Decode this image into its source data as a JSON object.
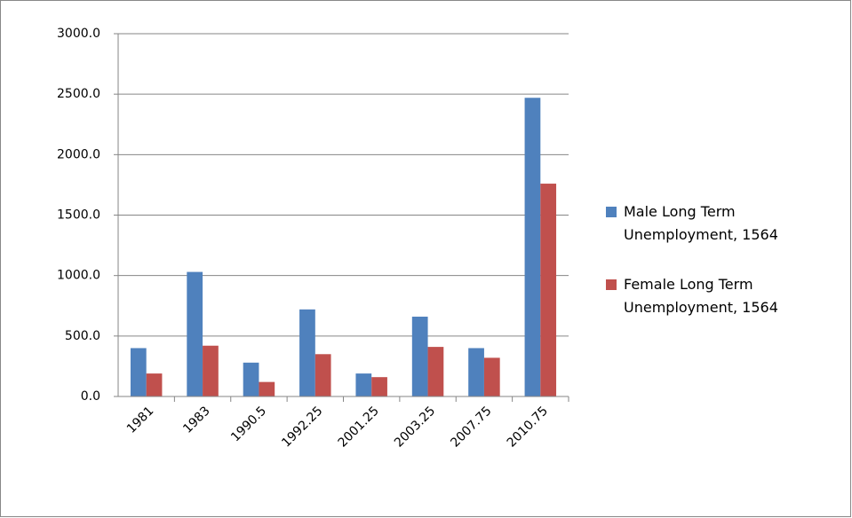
{
  "chart_data": {
    "type": "bar",
    "categories": [
      "1981",
      "1983",
      "1990.5",
      "1992.25",
      "2001.25",
      "2003.25",
      "2007.75",
      "2010.75"
    ],
    "series": [
      {
        "name": "Male Long Term Unemployment, 1564",
        "color": "#4f81bd",
        "values": [
          400,
          1030,
          280,
          720,
          190,
          660,
          400,
          2470
        ]
      },
      {
        "name": "Female Long Term Unemployment, 1564",
        "color": "#c0504d",
        "values": [
          190,
          420,
          120,
          350,
          160,
          410,
          320,
          1760
        ]
      }
    ],
    "ylim": [
      0,
      3000
    ],
    "yticks": [
      {
        "value": 0,
        "label": "0.0"
      },
      {
        "value": 500,
        "label": "500.0"
      },
      {
        "value": 1000,
        "label": "1000.0"
      },
      {
        "value": 1500,
        "label": "1500.0"
      },
      {
        "value": 2000,
        "label": "2000.0"
      },
      {
        "value": 2500,
        "label": "2500.0"
      },
      {
        "value": 3000,
        "label": "3000.0"
      }
    ],
    "grid": true,
    "legend": "right"
  }
}
